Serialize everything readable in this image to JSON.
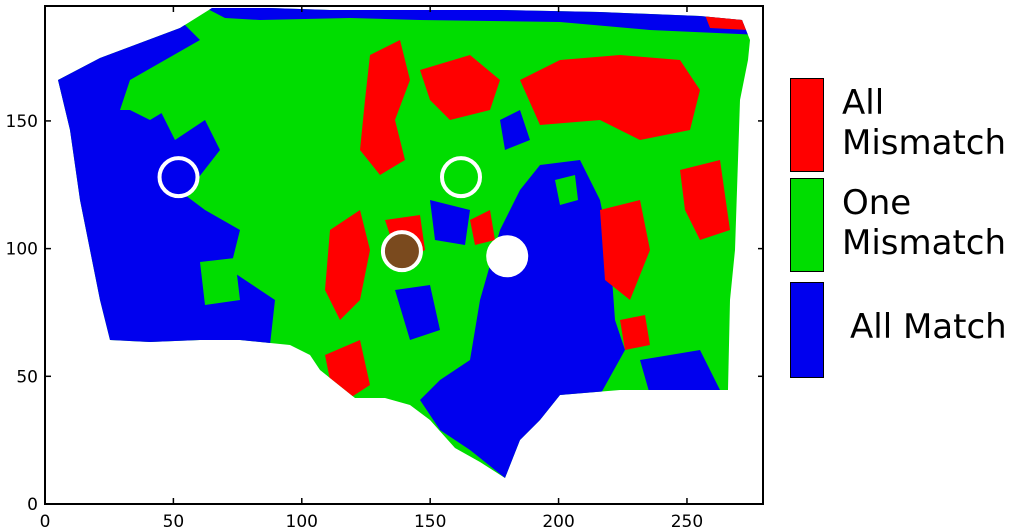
{
  "chart_data": {
    "type": "heatmap",
    "title": "",
    "xlabel": "",
    "ylabel": "",
    "xlim": [
      0,
      280
    ],
    "ylim": [
      0,
      195
    ],
    "x_ticks": [
      0,
      50,
      100,
      150,
      200,
      250
    ],
    "y_ticks": [
      0,
      50,
      100,
      150
    ],
    "x_tick_labels": [
      "0",
      "50",
      "100",
      "150",
      "200",
      "250"
    ],
    "y_tick_labels": [
      "0",
      "50",
      "100",
      "150"
    ],
    "categories": [
      {
        "label": "All Mismatch",
        "color": "#ff0000"
      },
      {
        "label": "One Mismatch",
        "color": "#00dd00"
      },
      {
        "label": "All Match",
        "color": "#0000ee"
      }
    ],
    "markers": [
      {
        "x": 52,
        "y": 128,
        "fill": "#0000ee",
        "stroke": "#ffffff"
      },
      {
        "x": 162,
        "y": 128,
        "fill": "#00dd00",
        "stroke": "#ffffff"
      },
      {
        "x": 139,
        "y": 99,
        "fill": "#7a4a1e",
        "stroke": "#ffffff"
      },
      {
        "x": 180,
        "y": 97,
        "fill": "#ffffff",
        "stroke": "#ffffff"
      }
    ]
  },
  "legend": {
    "items": [
      {
        "label": "All\nMismatch",
        "color": "#ff0000"
      },
      {
        "label": "One\nMismatch",
        "color": "#00dd00"
      },
      {
        "label": "All Match",
        "color": "#0000ee"
      }
    ]
  }
}
